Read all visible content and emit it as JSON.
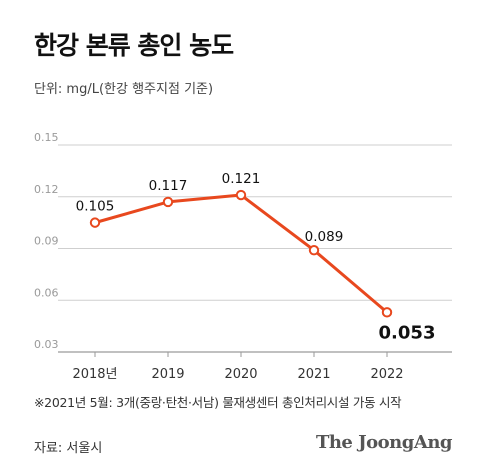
{
  "title": "한강 본류 총인 농도",
  "unit_note": "단위: mg/L(한강 행주지점 기준)",
  "footnote": "※2021년 5월: 3개(중랑·탄천·서남) 물재생센터 총인처리시설 가동 시작",
  "source": "자료: 서울시",
  "brand": "The JoongAng",
  "colors": {
    "line": "#e8481e",
    "grid": "#cfcfcf",
    "text": "#111111",
    "tick": "#9a9a9a"
  },
  "chart_data": {
    "type": "line",
    "categories": [
      "2018년",
      "2019",
      "2020",
      "2021",
      "2022"
    ],
    "values": [
      0.105,
      0.117,
      0.121,
      0.089,
      0.053
    ],
    "data_labels": [
      "0.105",
      "0.117",
      "0.121",
      "0.089",
      "0.053"
    ],
    "y_ticks": [
      "0.15",
      "0.12",
      "0.09",
      "0.06",
      "0.03"
    ],
    "ylim": [
      0.03,
      0.15
    ],
    "grid": true
  }
}
